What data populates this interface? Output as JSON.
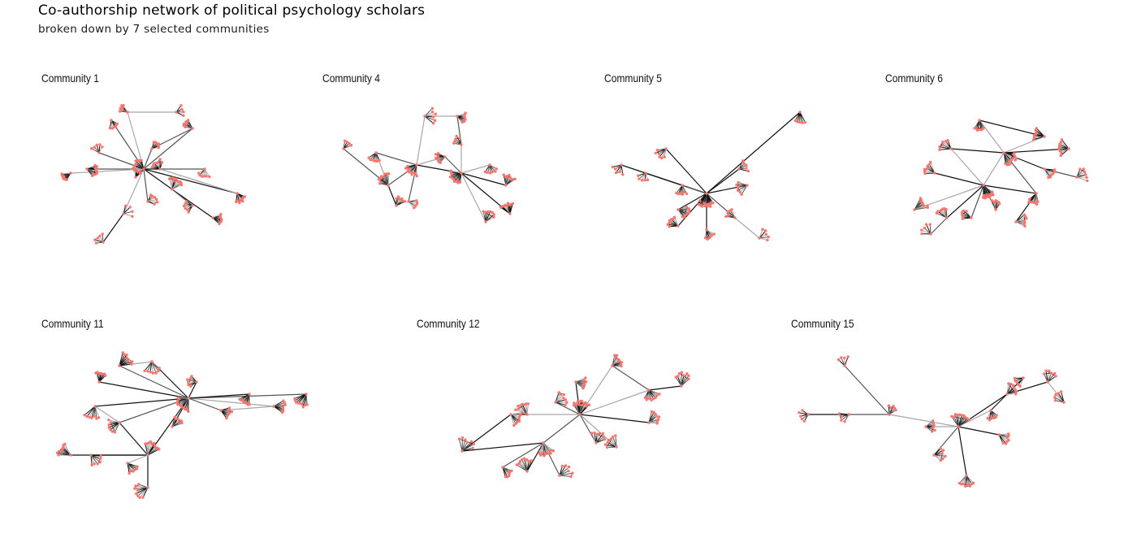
{
  "figure": {
    "title": "Co-authorship network of political psychology scholars",
    "subtitle": "broken down by 7 selected communities"
  },
  "colors": {
    "node": "#f8766d",
    "edge_dark": "#000000",
    "edge_light": "#bdbdbd",
    "background": "#ffffff"
  },
  "panels": [
    {
      "label": "Community 1"
    },
    {
      "label": "Community 4"
    },
    {
      "label": "Community 5"
    },
    {
      "label": "Community 6"
    },
    {
      "label": "Community 11"
    },
    {
      "label": "Community 12"
    },
    {
      "label": "Community 15"
    }
  ]
}
